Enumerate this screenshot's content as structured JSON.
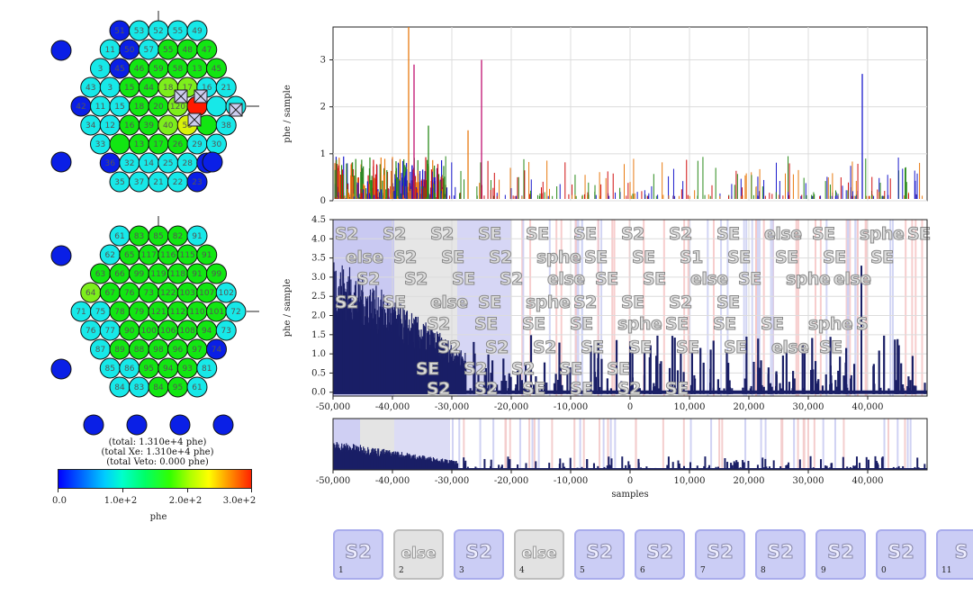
{
  "top_array": {
    "outer_labels": [
      "51",
      "53",
      "52",
      "55",
      "49",
      "11",
      "50",
      "57",
      "55",
      "48",
      "47",
      "3",
      "45",
      "46",
      "59",
      "58",
      "13",
      "45",
      "43",
      "3",
      "15",
      "44",
      "18",
      "17",
      "16",
      "21",
      "42",
      "11",
      "15",
      "18",
      "20",
      "120",
      "",
      "",
      "",
      "34",
      "12",
      "16",
      "39",
      "40",
      "59",
      "",
      "38",
      "33",
      "",
      "13",
      "17",
      "26",
      "29",
      "30",
      "36",
      "32",
      "14",
      "25",
      "28",
      "27",
      "35",
      "37",
      "21",
      "22",
      "23",
      "24",
      "37"
    ],
    "colors": {
      "blue": "#0a1fe6",
      "cyan": "#17e8e8",
      "green": "#12e612",
      "lime": "#7dee1c",
      "red": "#ff1a00",
      "yellow": "#d9f20a"
    }
  },
  "bottom_array": {
    "labels": [
      "61",
      "83",
      "85",
      "82",
      "91",
      "62",
      "65",
      "117",
      "116",
      "115",
      "91",
      "63",
      "66",
      "99",
      "119",
      "118",
      "91",
      "99",
      "64",
      "67",
      "76",
      "73",
      "122",
      "103",
      "107",
      "102",
      "71",
      "75",
      "78",
      "79",
      "121",
      "112",
      "110",
      "101",
      "72",
      "76",
      "77",
      "90",
      "100",
      "106",
      "108",
      "94",
      "73",
      "87",
      "89",
      "88",
      "98",
      "96",
      "97",
      "74",
      "85",
      "86",
      "95",
      "94",
      "93",
      "81",
      "84",
      "83",
      "84",
      "95"
    ],
    "veto_labels": [
      "",
      "",
      "",
      ""
    ]
  },
  "totals": {
    "total": "(total: 1.310e+4 phe)",
    "total_xe": "(total Xe: 1.310e+4 phe)",
    "total_veto": "(total Veto: 0.000 phe)"
  },
  "colorbar": {
    "ticks": [
      "0.0",
      "1.0e+2",
      "2.0e+2",
      "3.0e+2"
    ],
    "label": "phe"
  },
  "chart_data": [
    {
      "type": "line",
      "name": "per-channel waveforms",
      "ylabel": "phe / sample",
      "ylim": [
        0,
        3.7
      ],
      "yticks": [
        "0",
        "1",
        "2",
        "3"
      ],
      "series_colors": [
        "#1a1acc",
        "#e87a10",
        "#d01010",
        "#2a8a1a",
        "#c01070"
      ]
    },
    {
      "type": "area",
      "name": "summed waveform",
      "ylabel": "phe / sample",
      "ylim": [
        -0.1,
        4.5
      ],
      "yticks": [
        "0.0",
        "0.5",
        "1.0",
        "1.5",
        "2.0",
        "2.5",
        "3.0",
        "3.5",
        "4.0",
        "4.5"
      ],
      "xlim": [
        -50000,
        50000
      ],
      "xticks": [
        "-50,000",
        "-40,000",
        "-30,000",
        "-20,000",
        "-10,000",
        "0",
        "10,000",
        "20,000",
        "30,000",
        "40,000"
      ],
      "pulse_labels": [
        [
          "S2",
          "S2",
          "S2",
          "SE",
          "SE",
          "SE",
          "S2",
          "S2",
          "SE",
          "else",
          "SE",
          "sphe",
          "SE"
        ],
        [
          "else",
          "S2",
          "SE",
          "S2",
          "sphe",
          "SE",
          "SE",
          "S1",
          "SE",
          "SE",
          "SE",
          "SE"
        ],
        [
          "S2",
          "S2",
          "SE",
          "S2",
          "else",
          "SE",
          "SE",
          "else",
          "SE",
          "sphe",
          "else"
        ],
        [
          "S2",
          "SE",
          "else",
          "SE",
          "sphe",
          "S2",
          "SE",
          "S2",
          "SE"
        ],
        [
          "S2",
          "SE",
          "SE",
          "SE",
          "sphe",
          "SE",
          "SE",
          "SE",
          "sphe",
          "S"
        ],
        [
          "S2",
          "S2",
          "S2",
          "SE",
          "SE",
          "SE",
          "SE",
          "else",
          "SE"
        ],
        [
          "SE",
          "S2",
          "S2",
          "SE",
          "SE"
        ],
        [
          "S2",
          "S2",
          "SE",
          "SE",
          "S2",
          "SE"
        ]
      ]
    },
    {
      "type": "area",
      "name": "overview waveform",
      "xlabel": "samples",
      "xlim": [
        -50000,
        50000
      ],
      "xticks": [
        "-50,000",
        "-40,000",
        "-30,000",
        "-20,000",
        "-10,000",
        "0",
        "10,000",
        "20,000",
        "30,000",
        "40,000"
      ]
    }
  ],
  "pulse_buttons": [
    {
      "label": "S2",
      "num": "1",
      "kind": "s2"
    },
    {
      "label": "else",
      "num": "2",
      "kind": "else"
    },
    {
      "label": "S2",
      "num": "3",
      "kind": "s2"
    },
    {
      "label": "else",
      "num": "4",
      "kind": "else"
    },
    {
      "label": "S2",
      "num": "5",
      "kind": "s2"
    },
    {
      "label": "S2",
      "num": "6",
      "kind": "s2"
    },
    {
      "label": "S2",
      "num": "7",
      "kind": "s2"
    },
    {
      "label": "S2",
      "num": "8",
      "kind": "s2"
    },
    {
      "label": "S2",
      "num": "9",
      "kind": "s2"
    },
    {
      "label": "S2",
      "num": "0",
      "kind": "s2"
    },
    {
      "label": "S",
      "num": "11",
      "kind": "s2"
    }
  ]
}
